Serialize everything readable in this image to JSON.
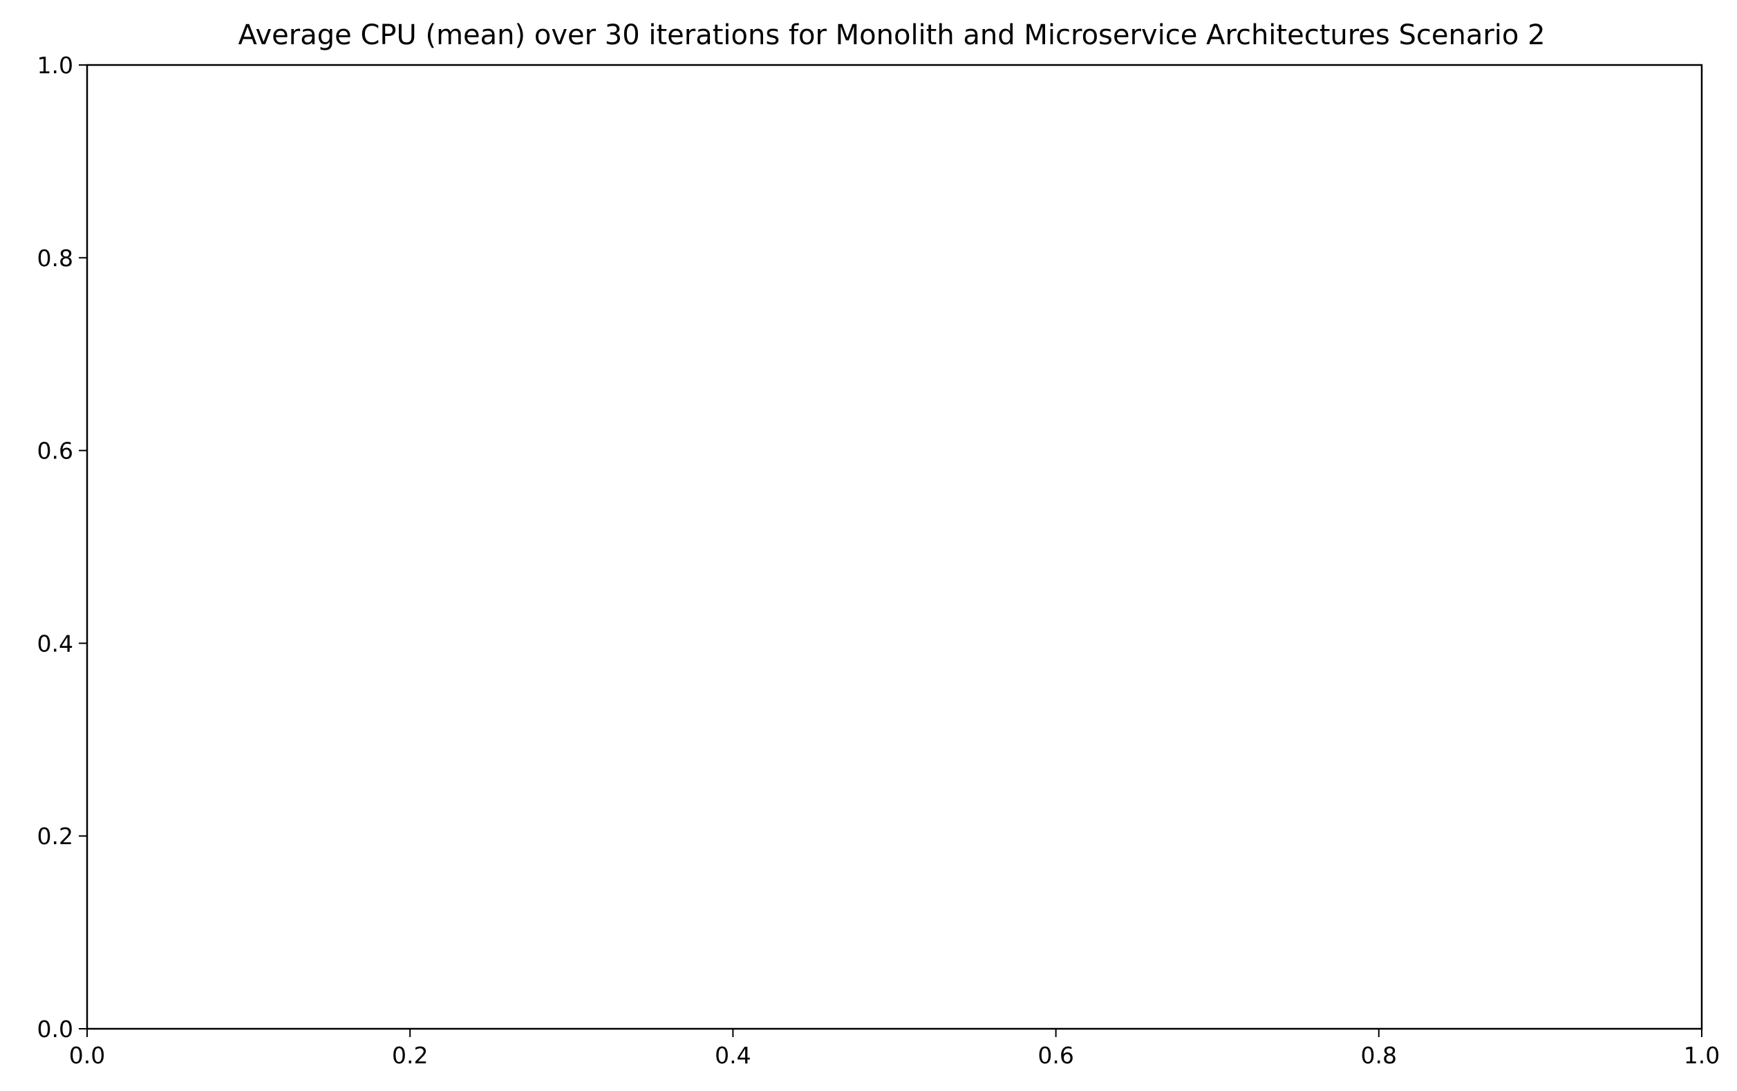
{
  "chart_data": {
    "type": "line",
    "title": "Average CPU (mean) over 30 iterations for Monolith and Microservice Architectures Scenario 2",
    "xlabel": "",
    "ylabel": "",
    "xlim": [
      0.0,
      1.0
    ],
    "ylim": [
      0.0,
      1.0
    ],
    "x_ticks": [
      "0.0",
      "0.2",
      "0.4",
      "0.6",
      "0.8",
      "1.0"
    ],
    "y_ticks": [
      "0.0",
      "0.2",
      "0.4",
      "0.6",
      "0.8",
      "1.0"
    ],
    "series": [],
    "grid": false,
    "legend": "none",
    "colors": {
      "axes": "#000000",
      "background": "#ffffff"
    }
  }
}
